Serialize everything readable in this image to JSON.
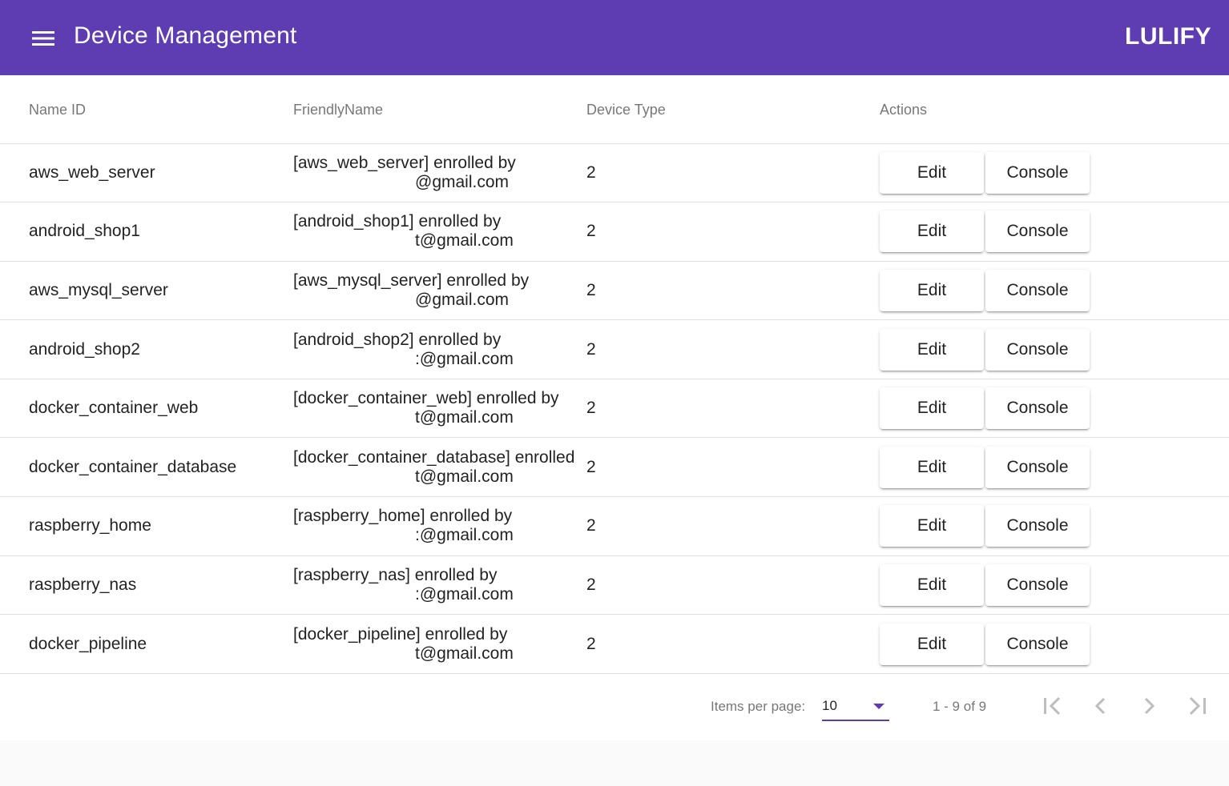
{
  "toolbar": {
    "menu_icon": "menu-icon",
    "title": "Device Management",
    "brand": "LULIFY",
    "color": "#5e3db3"
  },
  "table": {
    "columns": [
      "Name ID",
      "FriendlyName",
      "Device Type",
      "Actions"
    ],
    "rows": [
      {
        "name_id": "aws_web_server",
        "friendly_line1": "[aws_web_server] enrolled by",
        "friendly_line2": "@gmail.com",
        "device_type": "2",
        "edit": "Edit",
        "console": "Console"
      },
      {
        "name_id": "android_shop1",
        "friendly_line1": "[android_shop1] enrolled by",
        "friendly_line2": "t@gmail.com",
        "device_type": "2",
        "edit": "Edit",
        "console": "Console"
      },
      {
        "name_id": "aws_mysql_server",
        "friendly_line1": "[aws_mysql_server] enrolled by",
        "friendly_line2": "@gmail.com",
        "device_type": "2",
        "edit": "Edit",
        "console": "Console"
      },
      {
        "name_id": "android_shop2",
        "friendly_line1": "[android_shop2] enrolled by",
        "friendly_line2": ":@gmail.com",
        "device_type": "2",
        "edit": "Edit",
        "console": "Console"
      },
      {
        "name_id": "docker_container_web",
        "friendly_line1": "[docker_container_web] enrolled by",
        "friendly_line2": "t@gmail.com",
        "device_type": "2",
        "edit": "Edit",
        "console": "Console"
      },
      {
        "name_id": "docker_container_database",
        "friendly_line1": "[docker_container_database] enrolled",
        "friendly_line2": "t@gmail.com",
        "device_type": "2",
        "edit": "Edit",
        "console": "Console"
      },
      {
        "name_id": "raspberry_home",
        "friendly_line1": "[raspberry_home] enrolled by",
        "friendly_line2": ":@gmail.com",
        "device_type": "2",
        "edit": "Edit",
        "console": "Console"
      },
      {
        "name_id": "raspberry_nas",
        "friendly_line1": "[raspberry_nas] enrolled by",
        "friendly_line2": ":@gmail.com",
        "device_type": "2",
        "edit": "Edit",
        "console": "Console"
      },
      {
        "name_id": "docker_pipeline",
        "friendly_line1": "[docker_pipeline] enrolled by",
        "friendly_line2": "t@gmail.com",
        "device_type": "2",
        "edit": "Edit",
        "console": "Console"
      }
    ]
  },
  "paginator": {
    "items_per_page_label": "Items per page:",
    "items_per_page_value": "10",
    "range_label": "1 - 9 of 9",
    "first_icon": "first-page-icon",
    "prev_icon": "chevron-left-icon",
    "next_icon": "chevron-right-icon",
    "last_icon": "last-page-icon"
  }
}
